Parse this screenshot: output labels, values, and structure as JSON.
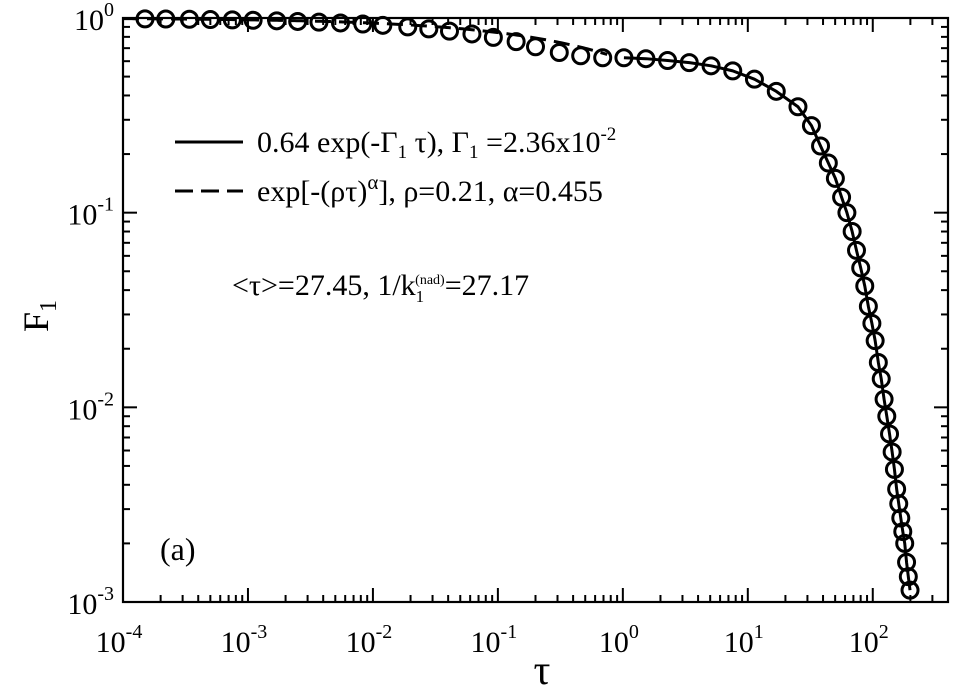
{
  "chart_data": {
    "type": "scatter",
    "xscale": "log",
    "yscale": "log",
    "xlim": [
      0.0001,
      400
    ],
    "ylim": [
      0.001,
      1
    ],
    "grid": false,
    "legend_position": "upper-left",
    "xlabel": "τ",
    "ylabel": {
      "base": "F",
      "sub": "1"
    },
    "panel_label": "(a)",
    "x_ticks": [
      {
        "value": 0.0001,
        "base": "10",
        "exp": "-4"
      },
      {
        "value": 0.001,
        "base": "10",
        "exp": "-3"
      },
      {
        "value": 0.01,
        "base": "10",
        "exp": "-2"
      },
      {
        "value": 0.1,
        "base": "10",
        "exp": "-1"
      },
      {
        "value": 1,
        "base": "10",
        "exp": "0"
      },
      {
        "value": 10,
        "base": "10",
        "exp": "1"
      },
      {
        "value": 100,
        "base": "10",
        "exp": "2"
      }
    ],
    "y_ticks": [
      {
        "value": 1,
        "base": "10",
        "exp": "0"
      },
      {
        "value": 0.1,
        "base": "10",
        "exp": "-1"
      },
      {
        "value": 0.01,
        "base": "10",
        "exp": "-2"
      },
      {
        "value": 0.001,
        "base": "10",
        "exp": "-3"
      }
    ],
    "legend": [
      {
        "style": "solid",
        "text": "0.64 exp(-Γ₁ τ), Γ₁ =2.36x10⁻²"
      },
      {
        "style": "dashed",
        "text": "exp[-(ρτ)ᵅ], ρ=0.21, α=0.455"
      }
    ],
    "annotation": "<τ>=27.45, 1/k₁⁽ⁿᵃᵈ⁾=27.17",
    "series": [
      {
        "style": "markers",
        "marker": "circle",
        "points": [
          [
            0.00015,
            0.99
          ],
          [
            0.00022,
            0.988
          ],
          [
            0.00034,
            0.985
          ],
          [
            0.0005,
            0.982
          ],
          [
            0.00075,
            0.978
          ],
          [
            0.0011,
            0.973
          ],
          [
            0.0017,
            0.967
          ],
          [
            0.0025,
            0.96
          ],
          [
            0.0037,
            0.952
          ],
          [
            0.0055,
            0.943
          ],
          [
            0.0083,
            0.931
          ],
          [
            0.012,
            0.917
          ],
          [
            0.019,
            0.9
          ],
          [
            0.028,
            0.879
          ],
          [
            0.041,
            0.856
          ],
          [
            0.062,
            0.828
          ],
          [
            0.092,
            0.795
          ],
          [
            0.14,
            0.756
          ],
          [
            0.2,
            0.712
          ],
          [
            0.31,
            0.665
          ],
          [
            0.46,
            0.64
          ],
          [
            0.69,
            0.625
          ],
          [
            1.02,
            0.625
          ],
          [
            1.53,
            0.618
          ],
          [
            2.28,
            0.605
          ],
          [
            3.4,
            0.59
          ],
          [
            5.08,
            0.568
          ],
          [
            7.58,
            0.535
          ],
          [
            11.3,
            0.485
          ],
          [
            16.9,
            0.42
          ],
          [
            25.2,
            0.35
          ],
          [
            32.3,
            0.28
          ],
          [
            38.2,
            0.22
          ],
          [
            44.1,
            0.18
          ],
          [
            50.2,
            0.15
          ],
          [
            56.3,
            0.12
          ],
          [
            62.1,
            0.1
          ],
          [
            68.4,
            0.08
          ],
          [
            74.1,
            0.064
          ],
          [
            80.1,
            0.052
          ],
          [
            86.3,
            0.042
          ],
          [
            92.2,
            0.033
          ],
          [
            98.4,
            0.027
          ],
          [
            104.5,
            0.022
          ],
          [
            110.8,
            0.017
          ],
          [
            116.9,
            0.014
          ],
          [
            123.2,
            0.011
          ],
          [
            129.5,
            0.009
          ],
          [
            136.2,
            0.0073
          ],
          [
            142.9,
            0.0059
          ],
          [
            149.1,
            0.0048
          ],
          [
            155.3,
            0.0038
          ],
          [
            161.4,
            0.0032
          ],
          [
            167.6,
            0.0027
          ],
          [
            173.9,
            0.0023
          ],
          [
            180.2,
            0.002
          ],
          [
            186.4,
            0.0016
          ],
          [
            192.5,
            0.00135
          ],
          [
            198.7,
            0.00115
          ]
        ]
      },
      {
        "style": "solid",
        "name": "0.64 exp(-Γ₁ τ), Γ₁ =2.36x10⁻²",
        "Gamma": 0.0236,
        "amplitude": 0.64,
        "x_range": [
          0.7,
          290
        ]
      },
      {
        "style": "dashed",
        "name": "exp[-(ρτ)ᵅ], ρ=0.21, α=0.455",
        "rho": 0.21,
        "alpha": 0.455,
        "x_range": [
          0.0001,
          0.75
        ]
      }
    ]
  }
}
